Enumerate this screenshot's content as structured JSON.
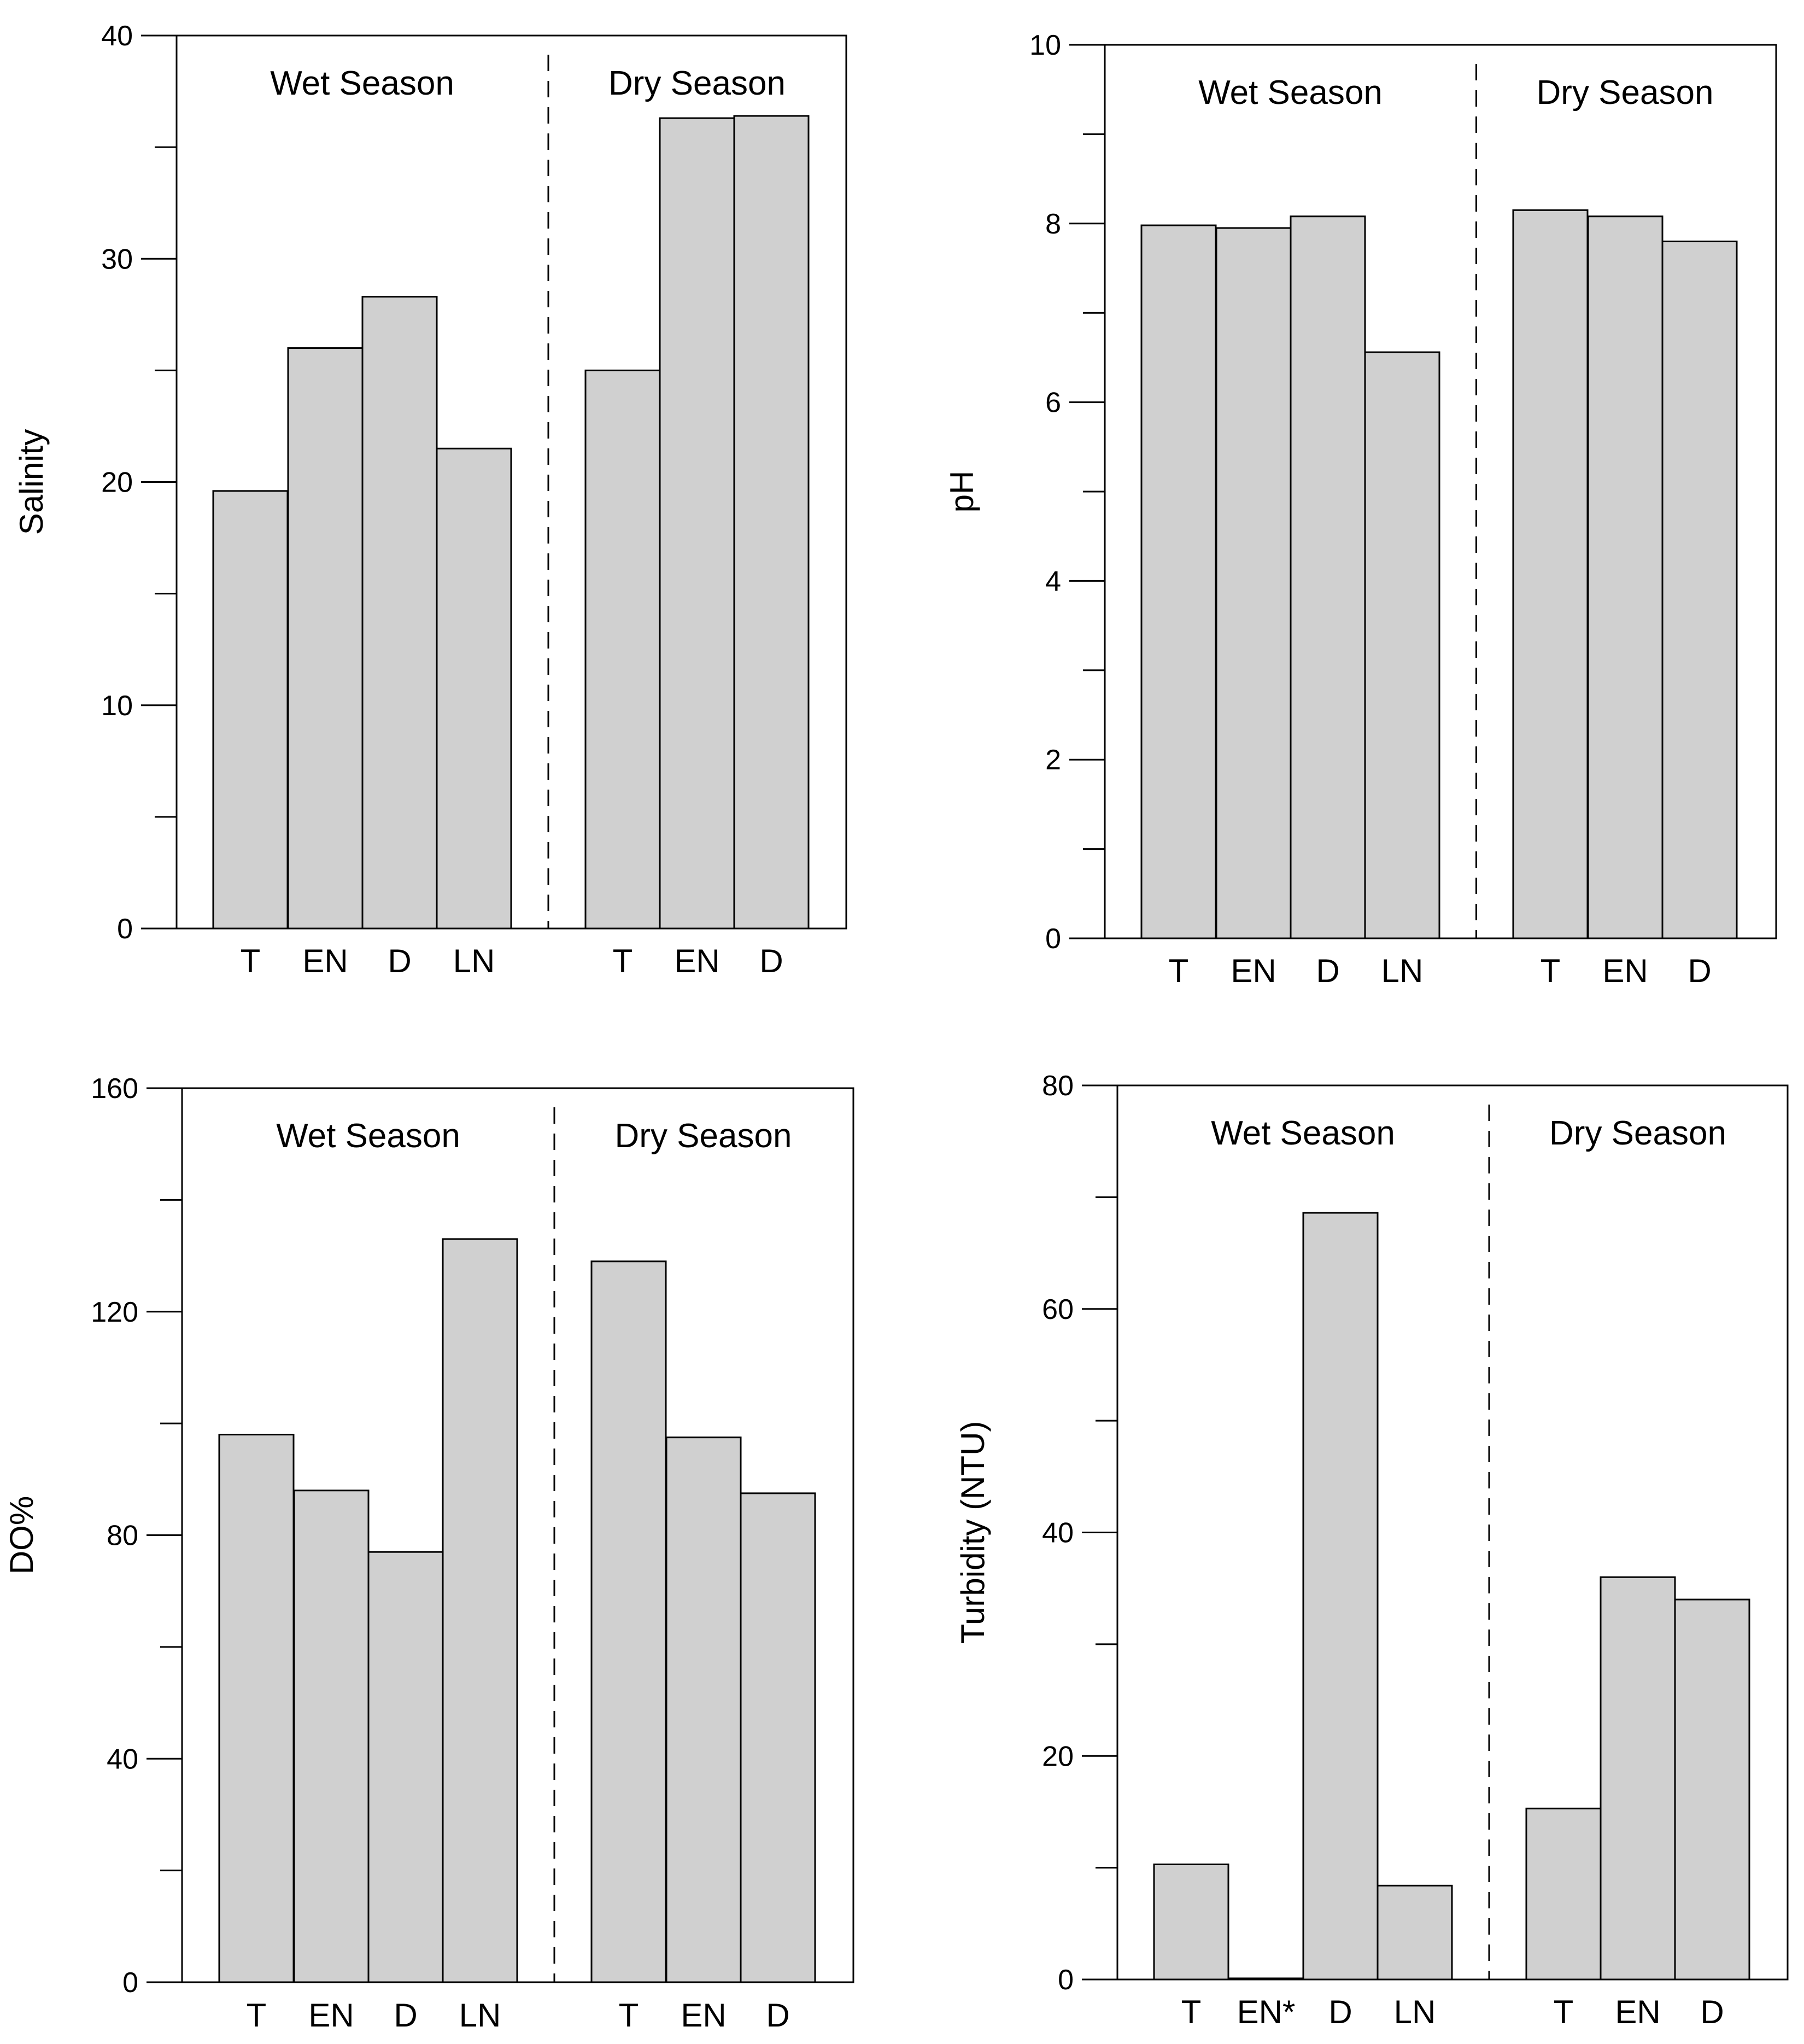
{
  "colors": {
    "bar_fill": "#d0d0d0",
    "stroke": "#000000",
    "background": "#ffffff"
  },
  "chart_data": [
    {
      "type": "bar",
      "ylabel": "Salinity",
      "ylim": [
        0,
        40
      ],
      "major_ticks": [
        0,
        10,
        20,
        30,
        40
      ],
      "minor_ticks": [
        5,
        15,
        25,
        35
      ],
      "series": [
        {
          "name": "Wet Season",
          "categories": [
            "T",
            "EN",
            "D",
            "LN"
          ],
          "values": [
            19.6,
            26.0,
            28.3,
            21.5
          ]
        },
        {
          "name": "Dry Season",
          "categories": [
            "T",
            "EN",
            "D"
          ],
          "values": [
            25.0,
            36.3,
            36.4
          ]
        }
      ]
    },
    {
      "type": "bar",
      "ylabel": "pH",
      "ylim": [
        0,
        10
      ],
      "major_ticks": [
        0,
        2,
        4,
        6,
        8,
        10
      ],
      "minor_ticks": [
        1,
        3,
        5,
        7,
        9
      ],
      "series": [
        {
          "name": "Wet Season",
          "categories": [
            "T",
            "EN",
            "D",
            "LN"
          ],
          "values": [
            7.98,
            7.95,
            8.08,
            6.56
          ]
        },
        {
          "name": "Dry Season",
          "categories": [
            "T",
            "EN",
            "D"
          ],
          "values": [
            8.15,
            8.08,
            7.8
          ]
        }
      ]
    },
    {
      "type": "bar",
      "ylabel": "DO%",
      "ylim": [
        0,
        160
      ],
      "major_ticks": [
        0,
        40,
        80,
        120,
        160
      ],
      "minor_ticks": [
        20,
        60,
        100,
        140
      ],
      "series": [
        {
          "name": "Wet Season",
          "categories": [
            "T",
            "EN",
            "D",
            "LN"
          ],
          "values": [
            98,
            88,
            77,
            133
          ]
        },
        {
          "name": "Dry Season",
          "categories": [
            "T",
            "EN",
            "D"
          ],
          "values": [
            129,
            97.5,
            87.5
          ]
        }
      ]
    },
    {
      "type": "bar",
      "ylabel": "Turbidity (NTU)",
      "ylim": [
        0,
        80
      ],
      "major_ticks": [
        0,
        20,
        40,
        60,
        80
      ],
      "minor_ticks": [
        10,
        30,
        50,
        70
      ],
      "series": [
        {
          "name": "Wet Season",
          "categories": [
            "T",
            "EN*",
            "D",
            "LN"
          ],
          "values": [
            10.3,
            0.1,
            68.6,
            8.4
          ]
        },
        {
          "name": "Dry Season",
          "categories": [
            "T",
            "EN",
            "D"
          ],
          "values": [
            15.3,
            36.0,
            34.0
          ]
        }
      ]
    }
  ]
}
